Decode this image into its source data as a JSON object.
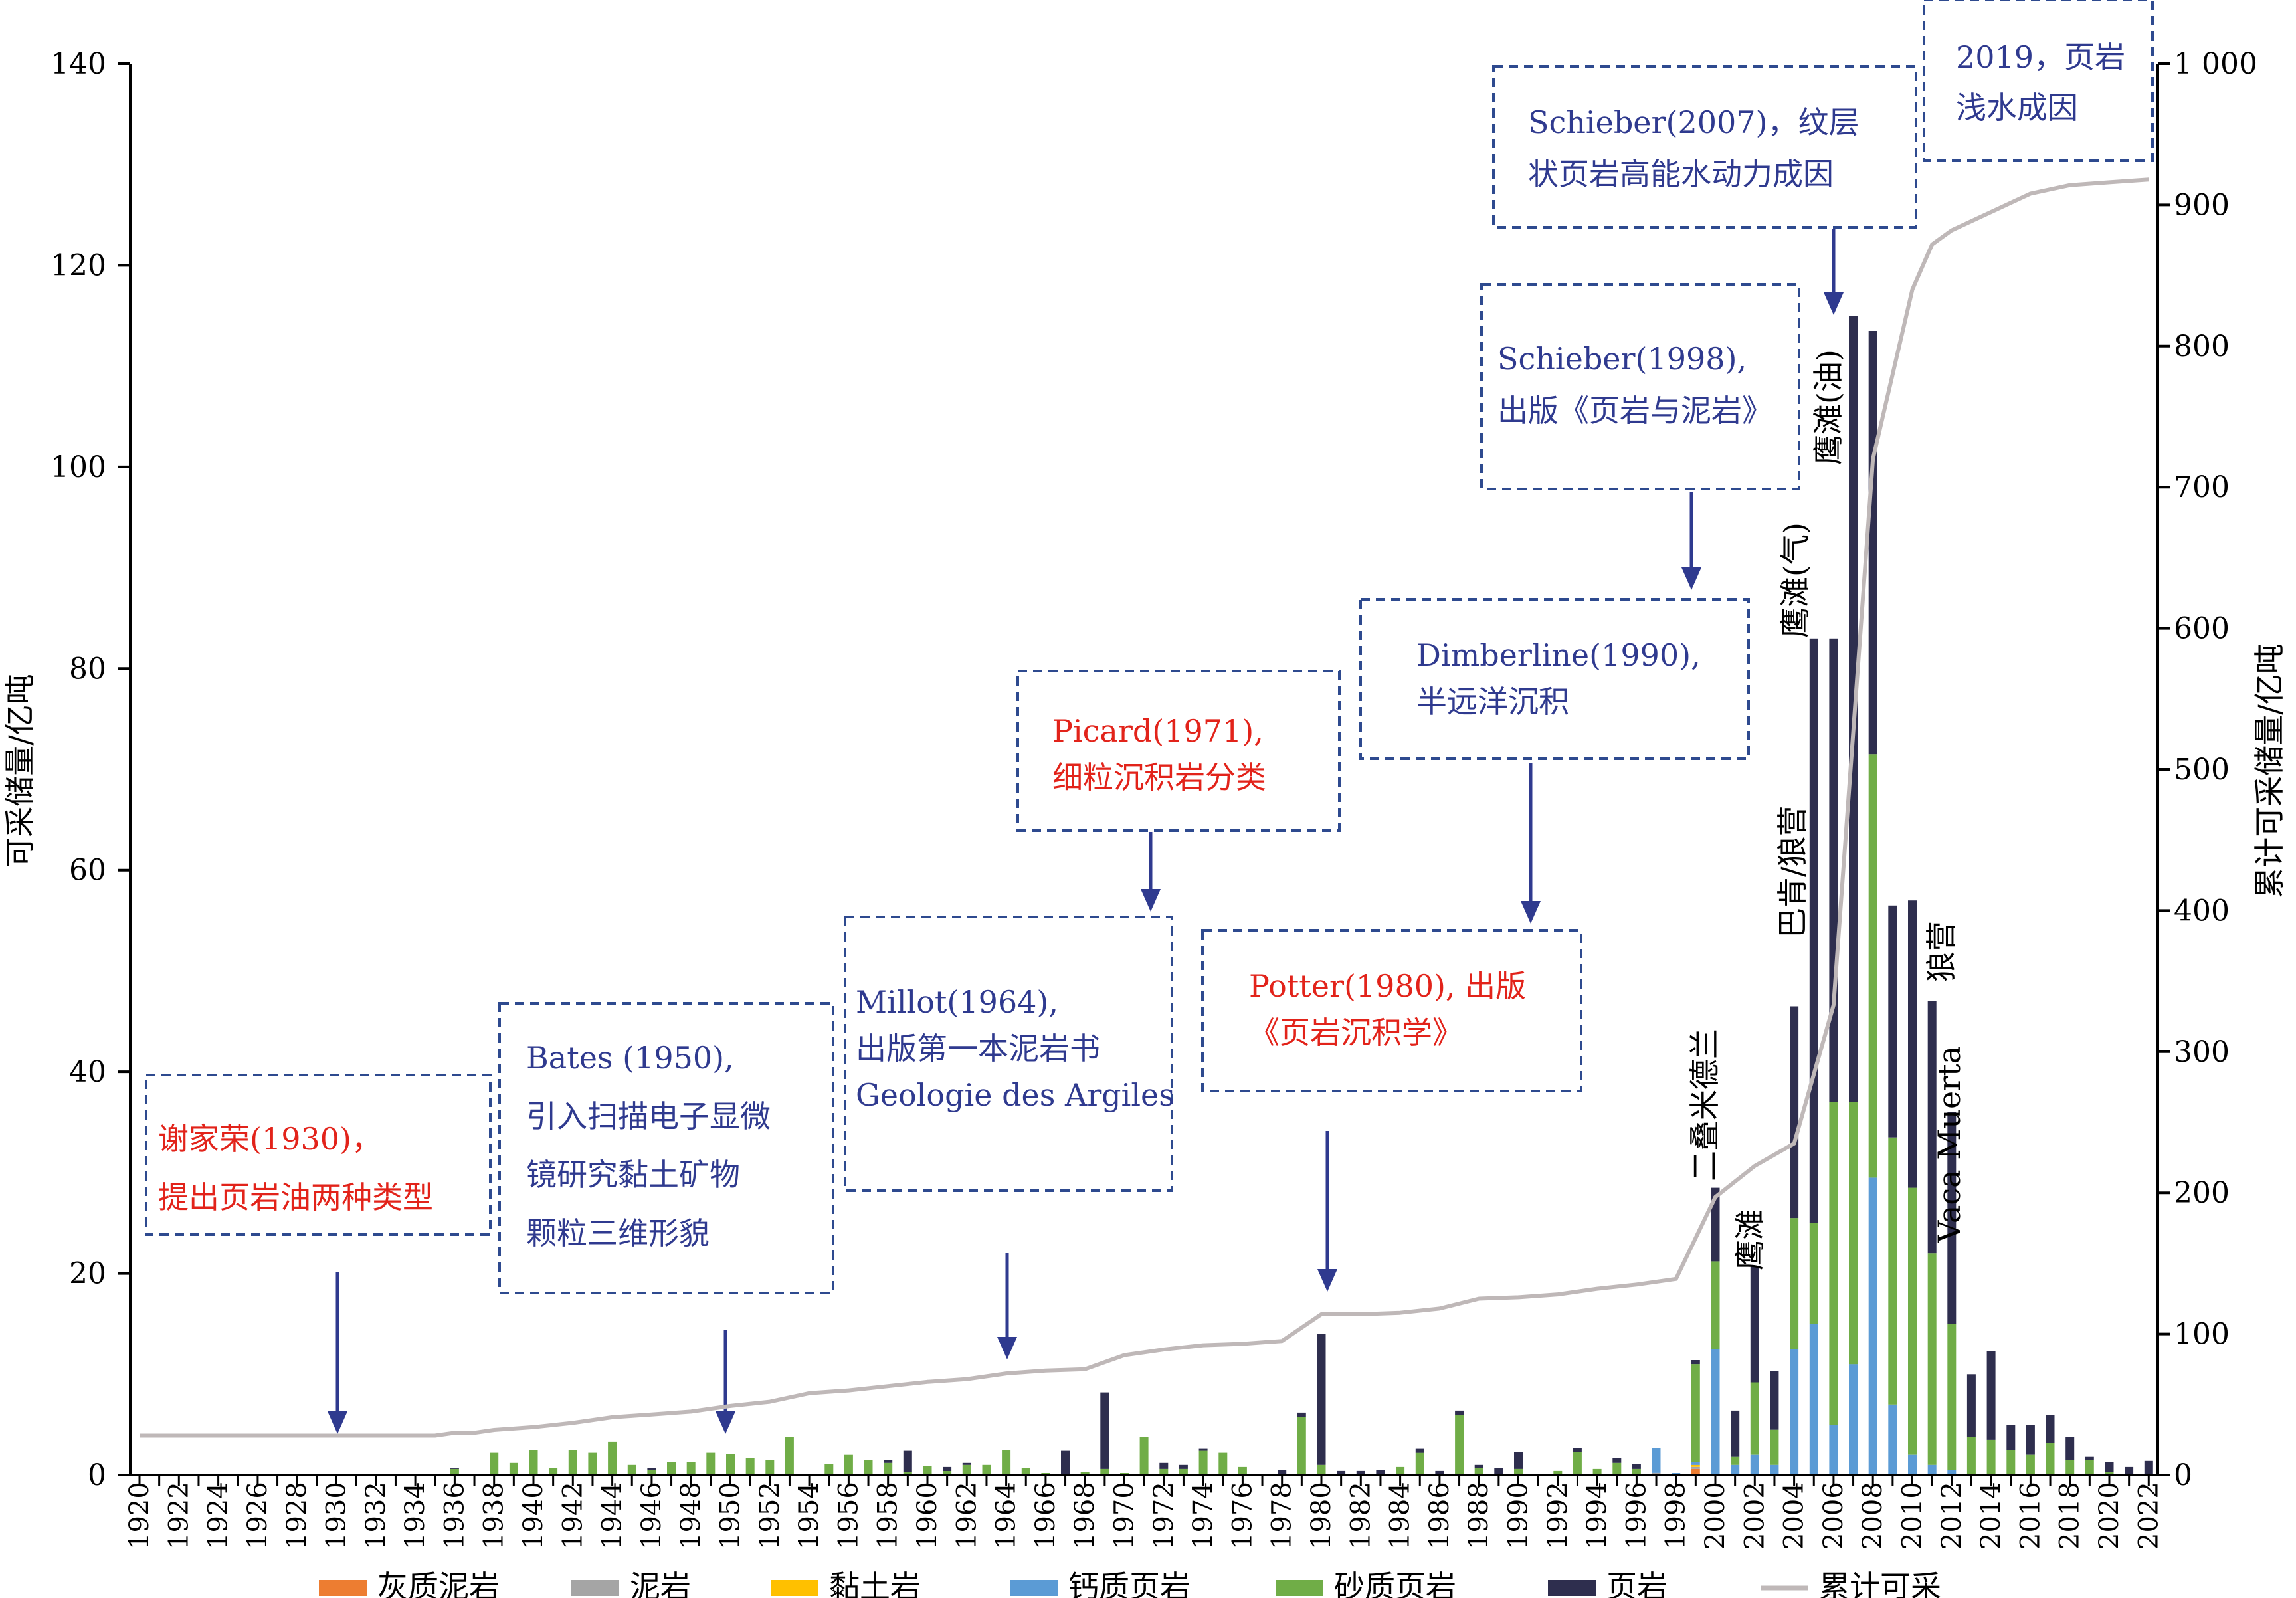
{
  "chart_data": {
    "type": "bar",
    "stacked": true,
    "ylabel": "可采储量/亿吨",
    "y2label": "累计可采储量/亿吨",
    "ylim": [
      0,
      140
    ],
    "y2lim": [
      0,
      1000
    ],
    "yticks": [
      "0",
      "20",
      "40",
      "60",
      "80",
      "100",
      "120",
      "140"
    ],
    "y2ticks": [
      "0",
      "100",
      "200",
      "300",
      "400",
      "500",
      "600",
      "700",
      "800",
      "900",
      "1 000"
    ],
    "x_start": 1920,
    "x_end": 2022,
    "xticks": [
      "1920",
      "1922",
      "1924",
      "1926",
      "1928",
      "1930",
      "1932",
      "1934",
      "1936",
      "1938",
      "1940",
      "1942",
      "1944",
      "1946",
      "1948",
      "1950",
      "1952",
      "1954",
      "1956",
      "1958",
      "1960",
      "1962",
      "1964",
      "1966",
      "1968",
      "1970",
      "1972",
      "1974",
      "1976",
      "1978",
      "1980",
      "1982",
      "1984",
      "1986",
      "1988",
      "1990",
      "1992",
      "1994",
      "1996",
      "1998",
      "2000",
      "2002",
      "2004",
      "2006",
      "2008",
      "2010",
      "2012",
      "2014",
      "2016",
      "2018",
      "2020",
      "2022"
    ],
    "colors": {
      "灰质泥岩": "#ED7D31",
      "泥岩": "#A5A5A5",
      "黏土岩": "#FFC000",
      "钙质页岩": "#5B9BD5",
      "砂质页岩": "#70AD47",
      "页岩": "#2E2E4E",
      "累计可采": "#BFB8B8"
    },
    "series": [
      {
        "name": "灰质泥岩",
        "values": [
          [
            1999,
            0.6
          ]
        ]
      },
      {
        "name": "泥岩",
        "values": [
          [
            1997,
            0.2
          ],
          [
            1999,
            0.2
          ]
        ]
      },
      {
        "name": "黏土岩",
        "values": [
          [
            1999,
            0.2
          ]
        ]
      },
      {
        "name": "钙质页岩",
        "values": [
          [
            1997,
            2.5
          ],
          [
            1998,
            0.2
          ],
          [
            1999,
            0.3
          ],
          [
            2000,
            12.5
          ],
          [
            2001,
            1.0
          ],
          [
            2002,
            2.0
          ],
          [
            2003,
            1.0
          ],
          [
            2004,
            12.5
          ],
          [
            2005,
            15
          ],
          [
            2006,
            5
          ],
          [
            2007,
            11
          ],
          [
            2008,
            29.5
          ],
          [
            2009,
            7
          ],
          [
            2010,
            2
          ],
          [
            2011,
            1
          ],
          [
            2012,
            0.5
          ]
        ]
      },
      {
        "name": "砂质页岩",
        "values": [
          [
            1936,
            0.6
          ],
          [
            1938,
            2.2
          ],
          [
            1939,
            1.2
          ],
          [
            1940,
            2.5
          ],
          [
            1941,
            0.7
          ],
          [
            1942,
            2.5
          ],
          [
            1943,
            2.2
          ],
          [
            1944,
            3.3
          ],
          [
            1945,
            1.0
          ],
          [
            1946,
            0.5
          ],
          [
            1947,
            1.3
          ],
          [
            1948,
            1.3
          ],
          [
            1949,
            2.2
          ],
          [
            1950,
            2.1
          ],
          [
            1951,
            1.7
          ],
          [
            1952,
            1.5
          ],
          [
            1953,
            3.8
          ],
          [
            1955,
            1.1
          ],
          [
            1956,
            2.0
          ],
          [
            1957,
            1.5
          ],
          [
            1958,
            1.2
          ],
          [
            1959,
            0.3
          ],
          [
            1960,
            0.9
          ],
          [
            1961,
            0.4
          ],
          [
            1962,
            1.0
          ],
          [
            1963,
            1.0
          ],
          [
            1964,
            2.5
          ],
          [
            1965,
            0.7
          ],
          [
            1966,
            0.2
          ],
          [
            1968,
            0.3
          ],
          [
            1969,
            0.6
          ],
          [
            1970,
            0.2
          ],
          [
            1971,
            3.8
          ],
          [
            1972,
            0.6
          ],
          [
            1973,
            0.6
          ],
          [
            1974,
            2.4
          ],
          [
            1975,
            2.2
          ],
          [
            1976,
            0.8
          ],
          [
            1979,
            5.8
          ],
          [
            1980,
            1.0
          ],
          [
            1984,
            0.8
          ],
          [
            1985,
            2.2
          ],
          [
            1987,
            6.0
          ],
          [
            1988,
            0.7
          ],
          [
            1990,
            0.6
          ],
          [
            1992,
            0.4
          ],
          [
            1993,
            2.3
          ],
          [
            1994,
            0.6
          ],
          [
            1995,
            1.2
          ],
          [
            1996,
            0.6
          ],
          [
            1999,
            9.7
          ],
          [
            2000,
            8.7
          ],
          [
            2001,
            0.8
          ],
          [
            2002,
            7.2
          ],
          [
            2003,
            3.5
          ],
          [
            2004,
            13
          ],
          [
            2005,
            10
          ],
          [
            2006,
            32
          ],
          [
            2007,
            26
          ],
          [
            2008,
            42
          ],
          [
            2009,
            26.5
          ],
          [
            2010,
            26.5
          ],
          [
            2011,
            21
          ],
          [
            2012,
            14.5
          ],
          [
            2013,
            3.8
          ],
          [
            2014,
            3.5
          ],
          [
            2015,
            2.5
          ],
          [
            2016,
            2.0
          ],
          [
            2017,
            3.2
          ],
          [
            2018,
            1.5
          ],
          [
            2019,
            1.5
          ],
          [
            2020,
            0.3
          ]
        ]
      },
      {
        "name": "页岩",
        "values": [
          [
            1936,
            0.1
          ],
          [
            1946,
            0.2
          ],
          [
            1958,
            0.3
          ],
          [
            1959,
            2.1
          ],
          [
            1961,
            0.4
          ],
          [
            1962,
            0.2
          ],
          [
            1967,
            2.4
          ],
          [
            1969,
            7.6
          ],
          [
            1972,
            0.6
          ],
          [
            1973,
            0.4
          ],
          [
            1974,
            0.2
          ],
          [
            1978,
            0.5
          ],
          [
            1979,
            0.4
          ],
          [
            1980,
            13.0
          ],
          [
            1981,
            0.4
          ],
          [
            1982,
            0.4
          ],
          [
            1983,
            0.5
          ],
          [
            1985,
            0.4
          ],
          [
            1986,
            0.4
          ],
          [
            1987,
            0.4
          ],
          [
            1988,
            0.3
          ],
          [
            1989,
            0.7
          ],
          [
            1990,
            1.7
          ],
          [
            1993,
            0.4
          ],
          [
            1995,
            0.5
          ],
          [
            1996,
            0.5
          ],
          [
            1999,
            0.4
          ],
          [
            2000,
            7.3
          ],
          [
            2001,
            4.6
          ],
          [
            2002,
            11.5
          ],
          [
            2003,
            5.8
          ],
          [
            2004,
            21
          ],
          [
            2005,
            58
          ],
          [
            2006,
            46
          ],
          [
            2007,
            78
          ],
          [
            2008,
            42
          ],
          [
            2009,
            23
          ],
          [
            2010,
            28.5
          ],
          [
            2011,
            25
          ],
          [
            2012,
            21
          ],
          [
            2013,
            6.2
          ],
          [
            2014,
            8.8
          ],
          [
            2015,
            2.5
          ],
          [
            2016,
            3.0
          ],
          [
            2017,
            2.8
          ],
          [
            2018,
            2.3
          ],
          [
            2019,
            0.3
          ],
          [
            2020,
            1.0
          ],
          [
            2021,
            0.8
          ],
          [
            2022,
            1.4
          ]
        ]
      },
      {
        "name": "累计可采",
        "axis": "right",
        "type": "line",
        "values": [
          [
            1920,
            28
          ],
          [
            1935,
            28
          ],
          [
            1936,
            30
          ],
          [
            1937,
            30
          ],
          [
            1938,
            32
          ],
          [
            1940,
            34
          ],
          [
            1942,
            37
          ],
          [
            1944,
            41
          ],
          [
            1946,
            43
          ],
          [
            1948,
            45
          ],
          [
            1950,
            49
          ],
          [
            1952,
            52
          ],
          [
            1954,
            58
          ],
          [
            1956,
            60
          ],
          [
            1958,
            63
          ],
          [
            1960,
            66
          ],
          [
            1962,
            68
          ],
          [
            1964,
            72
          ],
          [
            1966,
            74
          ],
          [
            1968,
            75
          ],
          [
            1970,
            85
          ],
          [
            1972,
            89
          ],
          [
            1974,
            92
          ],
          [
            1976,
            93
          ],
          [
            1978,
            95
          ],
          [
            1980,
            114
          ],
          [
            1982,
            114
          ],
          [
            1984,
            115
          ],
          [
            1986,
            118
          ],
          [
            1988,
            125
          ],
          [
            1990,
            126
          ],
          [
            1992,
            128
          ],
          [
            1994,
            132
          ],
          [
            1996,
            135
          ],
          [
            1998,
            139
          ],
          [
            2000,
            197
          ],
          [
            2002,
            219
          ],
          [
            2004,
            235
          ],
          [
            2006,
            333
          ],
          [
            2008,
            720
          ],
          [
            2010,
            840
          ],
          [
            2011,
            872
          ],
          [
            2012,
            882
          ],
          [
            2014,
            895
          ],
          [
            2016,
            908
          ],
          [
            2018,
            914
          ],
          [
            2020,
            916
          ],
          [
            2022,
            918
          ]
        ]
      }
    ],
    "annotations": [
      {
        "lines": [
          "谢家荣(1930)，",
          "提出页岩油两种类型"
        ],
        "color": "red",
        "arrow_year": 1930
      },
      {
        "lines": [
          "Bates (1950),",
          "引入扫描电子显微",
          "镜研究黏土矿物",
          "颗粒三维形貌"
        ],
        "color": "blue",
        "arrow_year": 1950
      },
      {
        "lines": [
          "Millot(1964),",
          "出版第一本泥岩书",
          "Geologie des Argiles"
        ],
        "color": "blue",
        "arrow_year": 1964
      },
      {
        "lines": [
          "Picard(1971),",
          "细粒沉积岩分类"
        ],
        "color": "red",
        "arrow_year": 1971
      },
      {
        "lines": [
          "Potter(1980), 出版",
          "《页岩沉积学》"
        ],
        "color": "red",
        "arrow_year": 1980
      },
      {
        "lines": [
          "Dimberline(1990),",
          "半远洋沉积"
        ],
        "color": "blue",
        "arrow_year": 1990
      },
      {
        "lines": [
          "Schieber(1998),",
          "出版《页岩与泥岩》"
        ],
        "color": "blue",
        "arrow_year": 1998
      },
      {
        "lines": [
          "Schieber(2007)，纹层",
          "状页岩高能水动力成因"
        ],
        "color": "blue",
        "arrow_year": 2007
      },
      {
        "lines": [
          "2019，页岩",
          "浅水成因"
        ],
        "color": "blue"
      }
    ],
    "bar_labels": [
      "二叠米德兰",
      "鹰滩",
      "巴肯/狼营",
      "鹰滩(气)",
      "鹰滩(油)",
      "狼营",
      "Vaca Muerta"
    ],
    "legend": [
      "灰质泥岩",
      "泥岩",
      "黏土岩",
      "钙质页岩",
      "砂质页岩",
      "页岩",
      "累计可采"
    ],
    "legend_position": "bottom"
  }
}
